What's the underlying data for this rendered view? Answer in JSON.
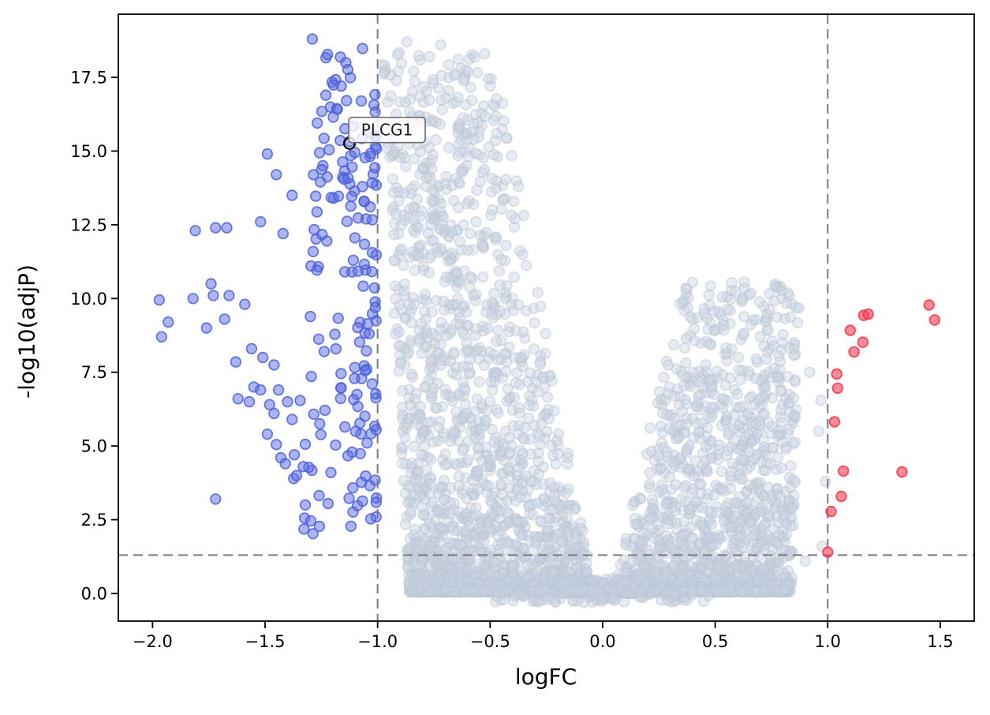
{
  "figure": {
    "background": "#ffffff"
  },
  "chart_data": {
    "type": "scatter",
    "subtype": "volcano",
    "title": "",
    "xlabel": "logFC",
    "ylabel": "-log10(adjP)",
    "xlim": [
      -2.152,
      1.651
    ],
    "ylim": [
      -0.937,
      19.64
    ],
    "grid": false,
    "legend": "none",
    "xticks": [
      "-2.0",
      "-1.5",
      "-1.0",
      "-0.5",
      "0.0",
      "0.5",
      "1.0",
      "1.5"
    ],
    "yticks": [
      "0.0",
      "2.5",
      "5.0",
      "7.5",
      "10.0",
      "12.5",
      "15.0",
      "17.5"
    ],
    "thresholds": {
      "vlines": [
        -1.0,
        1.0
      ],
      "hline": 1.301,
      "color": "#7b7b7b",
      "dash": [
        12,
        7
      ],
      "width": 2
    },
    "annotation": {
      "label": "PLCG1",
      "x": -1.125,
      "y": 15.26,
      "box_fill": "#ffffff",
      "box_edge": "#6e6e6e",
      "marker_color": "#000000"
    },
    "style": {
      "marker_radius": 6.3,
      "spine_color": "#000000",
      "tick_color": "#000000",
      "tick_font_px": 21,
      "label_font_px": 28
    },
    "series": [
      {
        "name": "not-significant",
        "fill": "rgba(200,210,224,0.42)",
        "edge": "rgba(186,197,214,0.5)",
        "points": [
          [
            -0.87,
            18.7
          ],
          [
            -0.72,
            18.6
          ],
          [
            -0.6,
            17.7
          ],
          [
            -0.5,
            17.2
          ],
          [
            0.4,
            10.55
          ],
          [
            0.63,
            10.35
          ],
          [
            0.45,
            9.65
          ],
          [
            0.85,
            8.3
          ],
          [
            0.92,
            7.5
          ],
          [
            0.97,
            6.55
          ],
          [
            0.96,
            5.5
          ],
          [
            0.99,
            3.8
          ],
          [
            0.975,
            1.6
          ],
          [
            0.9,
            1.1
          ]
        ],
        "clusters": [
          {
            "kind": "wing",
            "n": 1900,
            "side": -1,
            "yMin": 0.05,
            "yMax": 18.4,
            "yPow": 3.0,
            "i0": 0.035,
            "i1": 0.024,
            "o0": 0.86,
            "o1": 0.007,
            "xPow": 0.9
          },
          {
            "kind": "wing",
            "n": 1350,
            "side": 1,
            "yMin": 0.05,
            "yMax": 10.6,
            "yPow": 2.8,
            "i0": 0.04,
            "i1": 0.03,
            "o0": 0.84,
            "o1": 0.004,
            "xPow": 0.95
          },
          {
            "kind": "box",
            "n": 240,
            "x0": -0.2,
            "x1": 0.2,
            "y0": 0.0,
            "y1": 0.5,
            "xPow": 1,
            "yPow": 2
          },
          {
            "kind": "box",
            "n": 120,
            "x0": -0.5,
            "x1": 0.5,
            "y0": -0.3,
            "y1": 0.15,
            "xPow": 1,
            "yPow": 1
          }
        ]
      },
      {
        "name": "down-regulated",
        "fill": "rgba(90,108,228,0.5)",
        "edge": "rgba(72,92,216,0.8)",
        "points": [
          [
            -1.97,
            9.95
          ],
          [
            -1.93,
            9.2
          ],
          [
            -1.96,
            8.7
          ],
          [
            -1.81,
            12.3
          ],
          [
            -1.72,
            12.4
          ],
          [
            -1.67,
            12.4
          ],
          [
            -1.42,
            12.2
          ],
          [
            -1.82,
            10.0
          ],
          [
            -1.74,
            10.5
          ],
          [
            -1.73,
            10.1
          ],
          [
            -1.66,
            10.1
          ],
          [
            -1.59,
            9.8
          ],
          [
            -1.68,
            9.3
          ],
          [
            -1.76,
            9.0
          ],
          [
            -1.56,
            8.3
          ],
          [
            -1.51,
            8.0
          ],
          [
            -1.63,
            7.85
          ],
          [
            -1.46,
            7.75
          ],
          [
            -1.55,
            7.0
          ],
          [
            -1.52,
            6.9
          ],
          [
            -1.44,
            6.9
          ],
          [
            -1.57,
            6.5
          ],
          [
            -1.62,
            6.6
          ],
          [
            -1.48,
            6.4
          ],
          [
            -1.46,
            6.1
          ],
          [
            -1.4,
            6.5
          ],
          [
            -1.38,
            5.9
          ],
          [
            -1.49,
            5.4
          ],
          [
            -1.45,
            5.05
          ],
          [
            -1.43,
            4.6
          ],
          [
            -1.37,
            4.7
          ],
          [
            -1.41,
            4.4
          ],
          [
            -1.33,
            4.3
          ],
          [
            -1.36,
            4.0
          ],
          [
            -1.72,
            3.2
          ],
          [
            -1.49,
            14.9
          ],
          [
            -1.45,
            14.2
          ],
          [
            -1.52,
            12.6
          ],
          [
            -1.38,
            13.5
          ],
          [
            -1.29,
            18.8
          ]
        ],
        "clusters": [
          {
            "kind": "wing",
            "n": 105,
            "side": -1,
            "yMin": 8.8,
            "yMax": 18.55,
            "yPow": 0.85,
            "i0": 1.005,
            "i1": 0,
            "o0": 1.345,
            "o1": -0.004,
            "xPow": 1.5
          },
          {
            "kind": "wing",
            "n": 68,
            "side": -1,
            "yMin": 1.9,
            "yMax": 8.8,
            "yPow": 1.1,
            "i0": 1.005,
            "i1": 0,
            "o0": 1.42,
            "o1": -0.01,
            "xPow": 1.7
          }
        ]
      },
      {
        "name": "up-regulated",
        "fill": "rgba(246,66,88,0.62)",
        "edge": "rgba(242,58,80,0.9)",
        "points": [
          [
            1.45,
            9.78
          ],
          [
            1.16,
            9.43
          ],
          [
            1.18,
            9.47
          ],
          [
            1.475,
            9.27
          ],
          [
            1.1,
            8.92
          ],
          [
            1.156,
            8.52
          ],
          [
            1.117,
            8.19
          ],
          [
            1.04,
            7.44
          ],
          [
            1.044,
            6.96
          ],
          [
            1.03,
            5.82
          ],
          [
            1.07,
            4.15
          ],
          [
            1.33,
            4.12
          ],
          [
            1.06,
            3.29
          ],
          [
            1.015,
            2.78
          ],
          [
            1.0,
            1.4
          ]
        ],
        "clusters": []
      }
    ]
  }
}
